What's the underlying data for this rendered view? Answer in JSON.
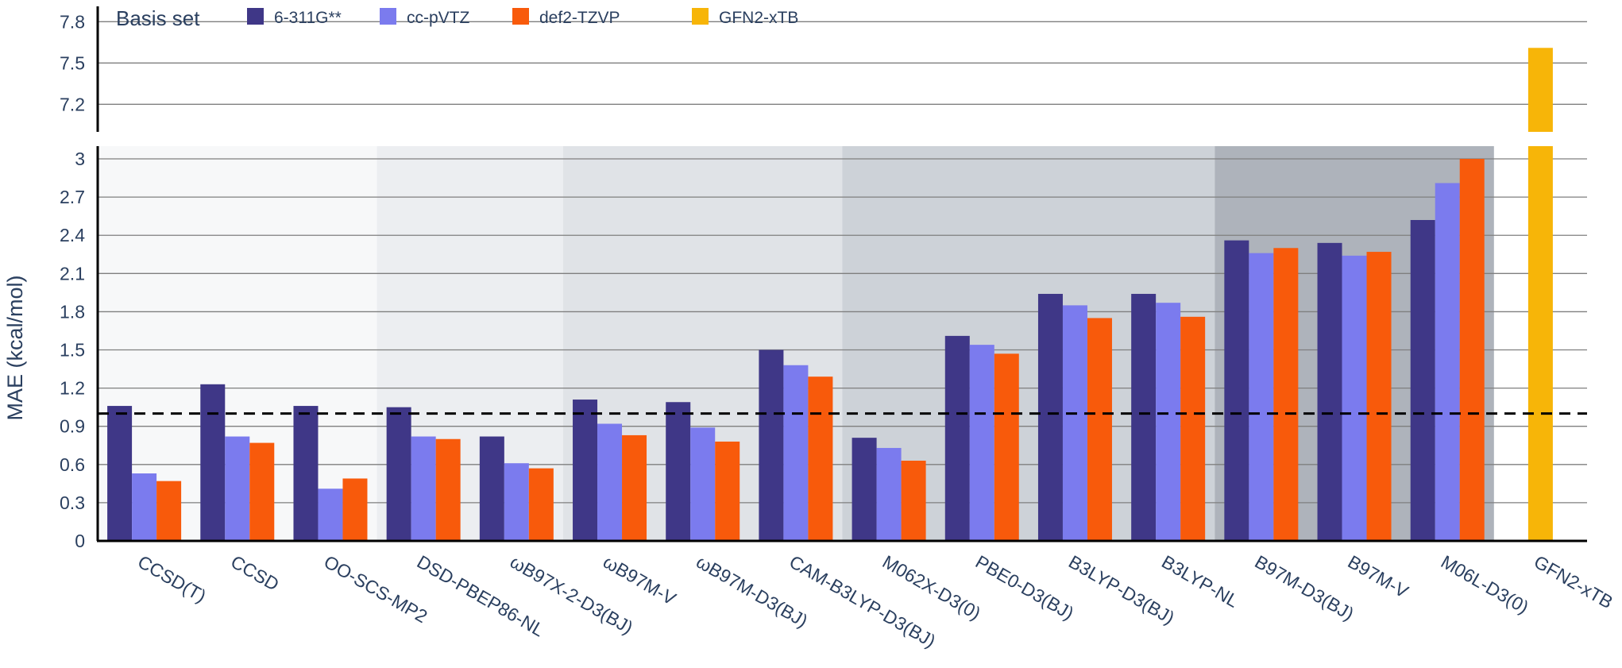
{
  "chart_data": {
    "type": "bar",
    "ylabel": "MAE (kcal/mol)",
    "legend": {
      "title": "Basis set",
      "placement": "top-left",
      "entries": [
        {
          "name": "6-311G**",
          "color": "#3f3787"
        },
        {
          "name": "cc-pVTZ",
          "color": "#7b7bee"
        },
        {
          "name": "def2-TZVP",
          "color": "#f85a0b"
        },
        {
          "name": "GFN2-xTB",
          "color": "#f7b508"
        }
      ]
    },
    "reference_line": {
      "y": 1.0,
      "style": "dashed"
    },
    "upper_axis": {
      "ylim": [
        7.0,
        7.9
      ],
      "ticks": [
        7.2,
        7.5,
        7.8
      ],
      "tick_labels": [
        "7.2",
        "7.5",
        "7.8"
      ]
    },
    "lower_axis": {
      "ylim": [
        0,
        3.1
      ],
      "ticks": [
        0,
        0.3,
        0.6,
        0.9,
        1.2,
        1.5,
        1.8,
        2.1,
        2.4,
        2.7,
        3.0
      ],
      "tick_labels": [
        "0",
        "0.3",
        "0.6",
        "0.9",
        "1.2",
        "1.5",
        "1.8",
        "2.1",
        "2.4",
        "2.7",
        "3"
      ]
    },
    "categories": [
      "CCSD(T)",
      "CCSD",
      "OO-SCS-MP2",
      "DSD-PBEP86-NL",
      "ωB97X-2-D3(BJ)",
      "ωB97M-V",
      "ωB97M-D3(BJ)",
      "CAM-B3LYP-D3(BJ)",
      "M062X-D3(0)",
      "PBE0-D3(BJ)",
      "B3LYP-D3(BJ)",
      "B3LYP-NL",
      "B97M-D3(BJ)",
      "B97M-V",
      "M06L-D3(0)",
      "GFN2-xTB"
    ],
    "series": [
      {
        "name": "6-311G**",
        "values": [
          1.06,
          1.23,
          1.06,
          1.05,
          0.82,
          1.11,
          1.09,
          1.5,
          0.81,
          1.61,
          1.94,
          1.94,
          2.36,
          2.34,
          2.52,
          null
        ]
      },
      {
        "name": "cc-pVTZ",
        "values": [
          0.53,
          0.82,
          0.41,
          0.82,
          0.61,
          0.92,
          0.89,
          1.38,
          0.73,
          1.54,
          1.85,
          1.87,
          2.26,
          2.24,
          2.81,
          null
        ]
      },
      {
        "name": "def2-TZVP",
        "values": [
          0.47,
          0.77,
          0.49,
          0.8,
          0.57,
          0.83,
          0.78,
          1.29,
          0.63,
          1.47,
          1.75,
          1.76,
          2.3,
          2.27,
          3.0,
          null
        ]
      },
      {
        "name": "GFN2-xTB",
        "values": [
          null,
          null,
          null,
          null,
          null,
          null,
          null,
          null,
          null,
          null,
          null,
          null,
          null,
          null,
          null,
          7.61
        ]
      }
    ],
    "background_groups": [
      {
        "categories": [
          "CCSD(T)",
          "CCSD",
          "OO-SCS-MP2"
        ],
        "color": "#f7f8f9"
      },
      {
        "categories": [
          "DSD-PBEP86-NL",
          "ωB97X-2-D3(BJ)"
        ],
        "color": "#eceef1"
      },
      {
        "categories": [
          "ωB97M-V",
          "ωB97M-D3(BJ)",
          "CAM-B3LYP-D3(BJ)"
        ],
        "color": "#e0e3e7"
      },
      {
        "categories": [
          "M062X-D3(0)",
          "PBE0-D3(BJ)",
          "B3LYP-D3(BJ)",
          "B3LYP-NL"
        ],
        "color": "#cdd2d8"
      },
      {
        "categories": [
          "B97M-D3(BJ)",
          "B97M-V",
          "M06L-D3(0)"
        ],
        "color": "#aeb3bb"
      }
    ],
    "grid": true
  }
}
